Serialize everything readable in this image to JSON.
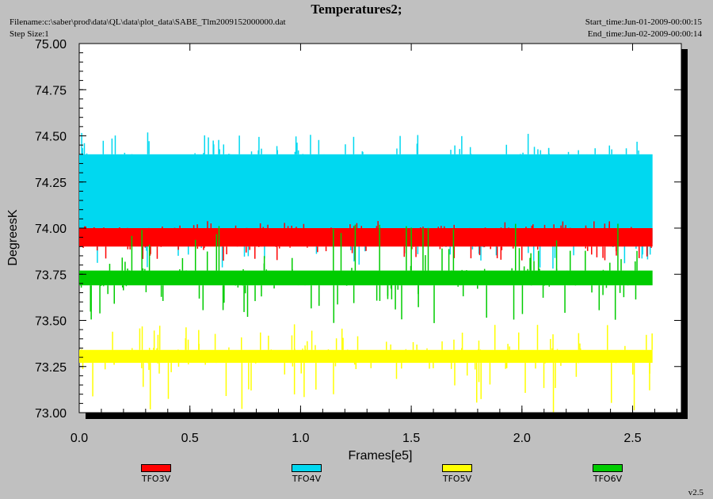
{
  "header": {
    "title": "Temperatures2;",
    "filename": "Filename:c:\\saber\\prod\\data\\QL\\data\\plot_data\\SABE_Tlm2009152000000.dat",
    "step_size": "Step Size:1",
    "start_time": "Start_time:Jun-01-2009-00:00:15",
    "end_time": "End_time:Jun-02-2009-00:00:14"
  },
  "footer": {
    "version": "v2.5"
  },
  "chart_data": {
    "type": "line",
    "title": "Temperatures2;",
    "xlabel": "Frames[e5]",
    "ylabel": "DegreesK",
    "xlim": [
      0.0,
      2.72
    ],
    "ylim": [
      73.0,
      75.0
    ],
    "x_ticks": [
      "0.0",
      "0.5",
      "1.0",
      "1.5",
      "2.0",
      "2.5"
    ],
    "y_ticks": [
      "73.00",
      "73.25",
      "73.50",
      "73.75",
      "74.00",
      "74.25",
      "74.50",
      "74.75",
      "75.00"
    ],
    "grid": false,
    "legend_placement": "bottom",
    "series": [
      {
        "name": "TFO3V",
        "color": "#ff0000",
        "x_range": [
          0.0,
          2.59
        ],
        "typical_range": [
          73.9,
          74.0
        ],
        "spike_range": [
          73.82,
          74.04
        ]
      },
      {
        "name": "TFO4V",
        "color": "#00d8f0",
        "x_range": [
          0.0,
          2.59
        ],
        "typical_range": [
          73.92,
          74.4
        ],
        "spike_range": [
          73.78,
          74.52
        ]
      },
      {
        "name": "TFO5V",
        "color": "#ffff00",
        "x_range": [
          0.0,
          2.59
        ],
        "typical_range": [
          73.27,
          73.34
        ],
        "spike_range": [
          73.0,
          73.48
        ]
      },
      {
        "name": "TFO6V",
        "color": "#00cc00",
        "x_range": [
          0.0,
          2.59
        ],
        "typical_range": [
          73.69,
          73.77
        ],
        "spike_range": [
          73.47,
          74.04
        ]
      }
    ]
  }
}
